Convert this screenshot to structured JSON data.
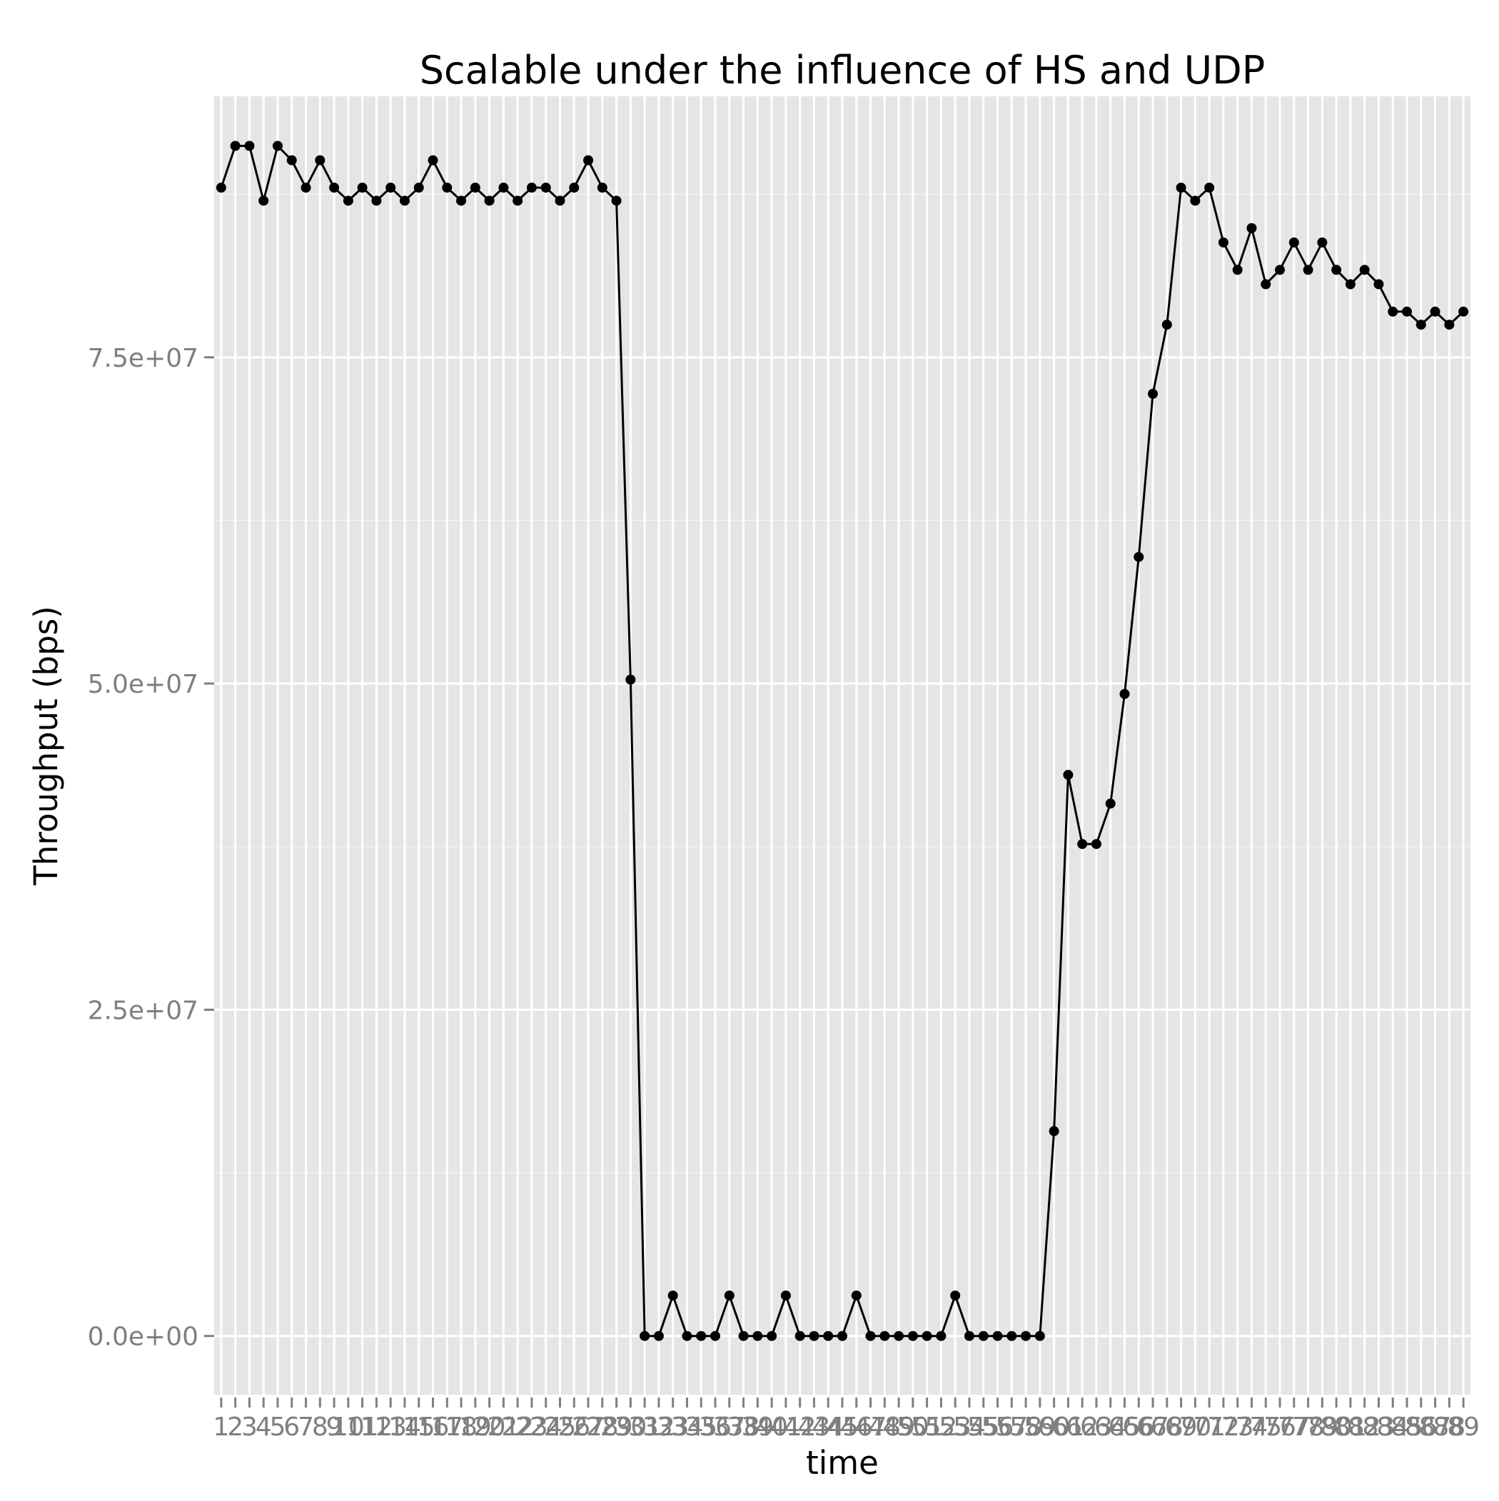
{
  "chart_data": {
    "type": "line",
    "title": "Scalable under the influence of HS and UDP",
    "xlabel": "time",
    "ylabel": "Throughput (bps)",
    "x": [
      1,
      2,
      3,
      4,
      5,
      6,
      7,
      8,
      9,
      10,
      11,
      12,
      13,
      14,
      15,
      16,
      17,
      18,
      19,
      20,
      21,
      22,
      23,
      24,
      25,
      26,
      27,
      28,
      29,
      30,
      31,
      32,
      33,
      34,
      35,
      36,
      37,
      38,
      39,
      40,
      41,
      42,
      43,
      44,
      45,
      46,
      47,
      48,
      49,
      50,
      51,
      52,
      53,
      54,
      55,
      56,
      57,
      58,
      59,
      60,
      61,
      62,
      63,
      64,
      65,
      66,
      67,
      68,
      69,
      70,
      71,
      72,
      73,
      74,
      75,
      76,
      77,
      78,
      79,
      80,
      81,
      82,
      83,
      84,
      85,
      86,
      87,
      88,
      89
    ],
    "x_tick_labels": [
      "1",
      "2",
      "3",
      "4",
      "5",
      "6",
      "7",
      "8",
      "9",
      "10",
      "11",
      "12",
      "13",
      "14",
      "15",
      "16",
      "17",
      "18",
      "19",
      "20",
      "21",
      "22",
      "23",
      "24",
      "25",
      "26",
      "27",
      "28",
      "29",
      "30",
      "31",
      "32",
      "33",
      "34",
      "35",
      "36",
      "37",
      "38",
      "39",
      "40",
      "41",
      "42",
      "43",
      "44",
      "45",
      "46",
      "47",
      "48",
      "49",
      "50",
      "51",
      "52",
      "53",
      "54",
      "55",
      "56",
      "57",
      "58",
      "59",
      "60",
      "61",
      "62",
      "63",
      "64",
      "65",
      "66",
      "67",
      "68",
      "69",
      "70",
      "71",
      "72",
      "73",
      "74",
      "75",
      "76",
      "77",
      "78",
      "79",
      "80",
      "81",
      "82",
      "83",
      "84",
      "85",
      "86",
      "87",
      "88",
      "89"
    ],
    "values": [
      88000000,
      91200000,
      91200000,
      87000000,
      91200000,
      90100000,
      88000000,
      90100000,
      88000000,
      87000000,
      88000000,
      87000000,
      88000000,
      87000000,
      88000000,
      90100000,
      88000000,
      87000000,
      88000000,
      87000000,
      88000000,
      87000000,
      88000000,
      88000000,
      87000000,
      88000000,
      90100000,
      88000000,
      87000000,
      50300000,
      0,
      0,
      3100000,
      0,
      0,
      0,
      3100000,
      0,
      0,
      0,
      3100000,
      0,
      0,
      0,
      0,
      3100000,
      0,
      0,
      0,
      0,
      0,
      0,
      3100000,
      0,
      0,
      0,
      0,
      0,
      0,
      15700000,
      43000000,
      37700000,
      37700000,
      40800000,
      49200000,
      59700000,
      72200000,
      77500000,
      88000000,
      87000000,
      88000000,
      83800000,
      81700000,
      84900000,
      80600000,
      81700000,
      83800000,
      81700000,
      83800000,
      81700000,
      80600000,
      81700000,
      80600000,
      78500000,
      78500000,
      77500000,
      78500000,
      77500000,
      78500000
    ],
    "y_tick_labels": [
      "0.0e+00",
      "2.5e+07",
      "5.0e+07",
      "7.5e+07"
    ],
    "y_ticks": [
      0,
      25000000,
      50000000,
      75000000
    ],
    "ylim": [
      -4500000,
      95000000
    ],
    "xlim": [
      0.5,
      89.5
    ],
    "grid": true,
    "legend": "none",
    "colors": {
      "panel_background": "#E5E5E5",
      "grid_major": "#FFFFFF",
      "line": "#000000",
      "tick_text": "#7F7F7F",
      "title_text": "#000000"
    }
  }
}
